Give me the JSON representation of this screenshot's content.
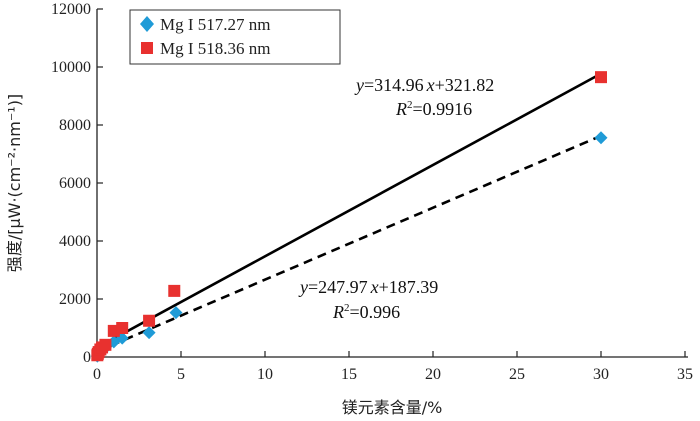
{
  "chart_data": {
    "type": "scatter",
    "title": "",
    "xlabel": "镁元素含量/%",
    "ylabel": "强度/[μW·(cm⁻²·nm⁻¹)]",
    "xlim": [
      0,
      35
    ],
    "ylim": [
      0,
      12000
    ],
    "x_ticks": [
      0,
      5,
      10,
      15,
      20,
      25,
      30,
      35
    ],
    "y_ticks": [
      0,
      2000,
      4000,
      6000,
      8000,
      10000,
      12000
    ],
    "grid": false,
    "legend_position": "top-left",
    "series": [
      {
        "name": "Mg I 517.27 nm",
        "marker": "diamond",
        "color": "#1f9bd7",
        "x": [
          0.02,
          0.05,
          0.1,
          0.2,
          0.3,
          0.5,
          1.0,
          1.5,
          3.1,
          4.7,
          30.0
        ],
        "y": [
          30,
          60,
          110,
          180,
          250,
          320,
          520,
          650,
          840,
          1530,
          7560
        ],
        "fit": {
          "slope": 247.97,
          "intercept": 187.39,
          "r2": "0.996",
          "style": "dashed"
        }
      },
      {
        "name": "Mg I 518.36 nm",
        "marker": "square",
        "color": "#e8312f",
        "x": [
          0.02,
          0.05,
          0.1,
          0.2,
          0.3,
          0.5,
          1.0,
          1.5,
          3.1,
          4.6,
          30.0
        ],
        "y": [
          60,
          110,
          170,
          260,
          330,
          420,
          900,
          1000,
          1250,
          2280,
          9650
        ],
        "fit": {
          "slope": 314.96,
          "intercept": 321.82,
          "r2": "0.9916",
          "style": "solid"
        }
      }
    ],
    "annotations": {
      "eq_518": {
        "y": "y",
        "eq": "=314.96",
        "x": "x",
        "rest": "+321.82",
        "r": "R",
        "sup": "2",
        "rval": "=0.9916"
      },
      "eq_517": {
        "y": "y",
        "eq": "=247.97",
        "x": "x",
        "rest": "+187.39",
        "r": "R",
        "sup": "2",
        "rval": "=0.996"
      }
    }
  }
}
